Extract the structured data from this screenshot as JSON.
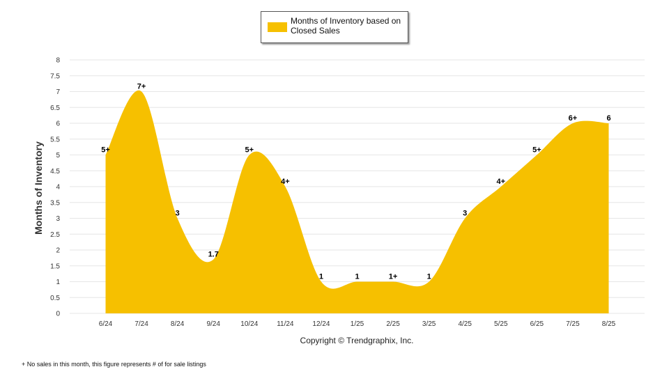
{
  "chart_data": {
    "type": "area",
    "ylabel": "Months of Inventory",
    "copyright": "Copyright © Trendgraphix, Inc.",
    "legend": {
      "label": "Months of Inventory based on Closed Sales",
      "placement": "top-center"
    },
    "footnote": "+ No sales in this month, this figure represents # of for sale listings",
    "ylim": [
      0,
      8
    ],
    "yticks": [
      "0",
      "0.5",
      "1",
      "1.5",
      "2",
      "2.5",
      "3",
      "3.5",
      "4",
      "4.5",
      "5",
      "5.5",
      "6",
      "6.5",
      "7",
      "7.5",
      "8"
    ],
    "categories": [
      "6/24",
      "7/24",
      "8/24",
      "9/24",
      "10/24",
      "11/24",
      "12/24",
      "1/25",
      "2/25",
      "3/25",
      "4/25",
      "5/25",
      "6/25",
      "7/25",
      "8/25"
    ],
    "series": [
      {
        "name": "Months of Inventory based on Closed Sales",
        "values": [
          5,
          7,
          3,
          1.7,
          5,
          4,
          1,
          1,
          1,
          1,
          3,
          4,
          5,
          6,
          6
        ],
        "labels": [
          "5+",
          "7+",
          "3",
          "1.7",
          "5+",
          "4+",
          "1",
          "1",
          "1+",
          "1",
          "3",
          "4+",
          "5+",
          "6+",
          "6"
        ]
      }
    ],
    "grid": true,
    "colors": {
      "area": "#F6C000",
      "grid": "#e6e6e6",
      "axis_text": "#333333"
    }
  }
}
